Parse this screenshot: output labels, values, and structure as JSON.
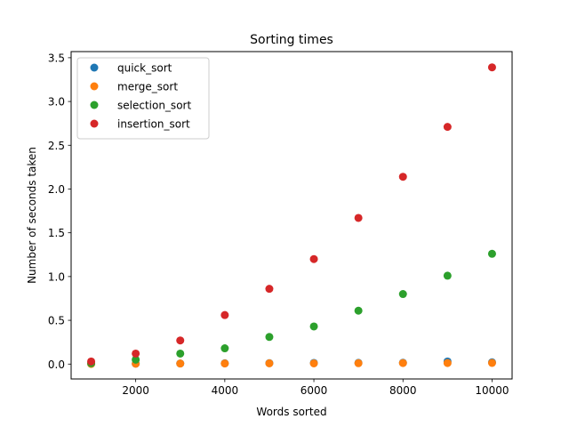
{
  "chart_data": {
    "type": "scatter",
    "title": "Sorting times",
    "xlabel": "Words sorted",
    "ylabel": "Number of seconds taken",
    "xlim": [
      550,
      10450
    ],
    "ylim": [
      -0.17,
      3.57
    ],
    "xticks": [
      2000,
      4000,
      6000,
      8000,
      10000
    ],
    "xtick_labels": [
      "2000",
      "4000",
      "6000",
      "8000",
      "10000"
    ],
    "yticks": [
      0.0,
      0.5,
      1.0,
      1.5,
      2.0,
      2.5,
      3.0,
      3.5
    ],
    "ytick_labels": [
      "0.0",
      "0.5",
      "1.0",
      "1.5",
      "2.0",
      "2.5",
      "3.0",
      "3.5"
    ],
    "grid": false,
    "legend_position": "upper-left",
    "x": [
      1000,
      2000,
      3000,
      4000,
      5000,
      6000,
      7000,
      8000,
      9000,
      10000
    ],
    "series": [
      {
        "name": "quick_sort",
        "color": "#1f77b4",
        "values": [
          0.003,
          0.005,
          0.007,
          0.009,
          0.011,
          0.013,
          0.014,
          0.015,
          0.03,
          0.02
        ]
      },
      {
        "name": "merge_sort",
        "color": "#ff7f0e",
        "values": [
          0.002,
          0.004,
          0.006,
          0.007,
          0.009,
          0.008,
          0.01,
          0.012,
          0.012,
          0.013
        ]
      },
      {
        "name": "selection_sort",
        "color": "#2ca02c",
        "values": [
          0.01,
          0.05,
          0.12,
          0.18,
          0.31,
          0.43,
          0.61,
          0.8,
          1.01,
          1.26
        ]
      },
      {
        "name": "insertion_sort",
        "color": "#d62728",
        "values": [
          0.03,
          0.12,
          0.27,
          0.56,
          0.86,
          1.2,
          1.67,
          2.14,
          2.71,
          3.39
        ]
      }
    ]
  }
}
